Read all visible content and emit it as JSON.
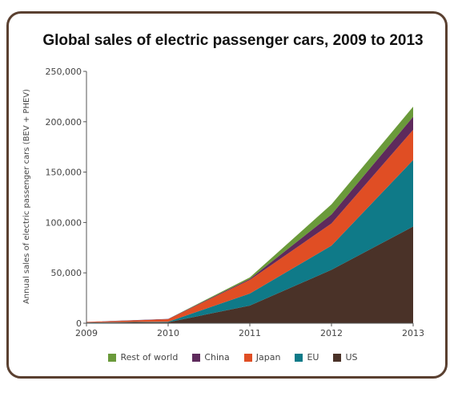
{
  "chart_data": {
    "type": "area",
    "stacked": true,
    "title": "Global sales of electric passenger cars, 2009 to 2013",
    "xlabel": "",
    "ylabel": "Annual sales of electric passenger cars (BEV + PHEV)",
    "x": [
      "2009",
      "2010",
      "2011",
      "2012",
      "2013"
    ],
    "ylim": [
      0,
      250000
    ],
    "yticks": [
      0,
      50000,
      100000,
      150000,
      200000,
      250000
    ],
    "ytick_labels": [
      "0",
      "50,000",
      "100,000",
      "150,000",
      "200,000",
      "250,000"
    ],
    "legend_position": "bottom",
    "grid": false,
    "series": [
      {
        "name": "US",
        "color": "#4a3228",
        "values": [
          500,
          1000,
          17500,
          53000,
          96000
        ]
      },
      {
        "name": "EU",
        "color": "#0f7a88",
        "values": [
          200,
          500,
          12000,
          24000,
          66000
        ]
      },
      {
        "name": "Japan",
        "color": "#e04e24",
        "values": [
          500,
          2500,
          13500,
          22000,
          30000
        ]
      },
      {
        "name": "China",
        "color": "#5e2a5c",
        "values": [
          100,
          300,
          1000,
          9000,
          13000
        ]
      },
      {
        "name": "Rest of world",
        "color": "#6a9a3a",
        "values": [
          0,
          0,
          1500,
          10000,
          10000
        ]
      }
    ],
    "legend_order": [
      "Rest of world",
      "China",
      "Japan",
      "EU",
      "US"
    ]
  }
}
